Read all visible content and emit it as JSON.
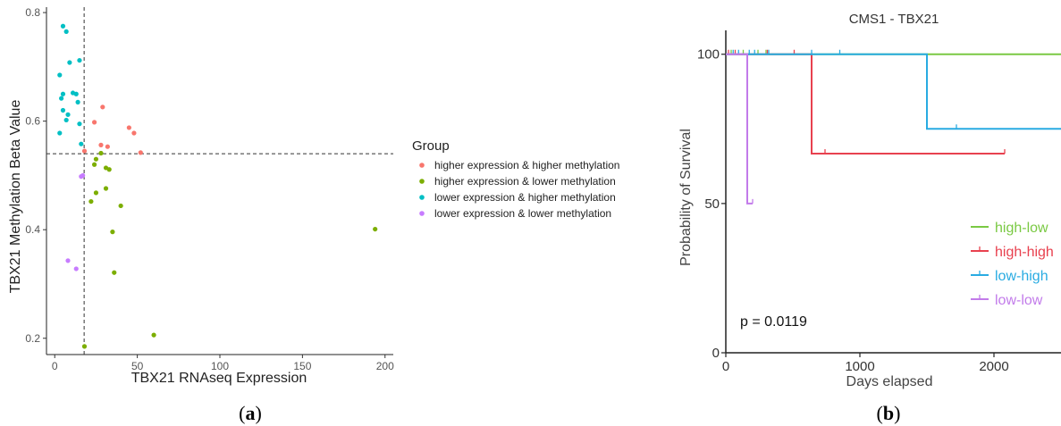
{
  "panel_a": {
    "caption": "(a)",
    "caption_letter": "a",
    "chart_data": {
      "type": "scatter",
      "title": "",
      "xlabel": "TBX21 RNAseq Expression",
      "ylabel": "TBX21 Methylation Beta Value",
      "xlim": [
        -5,
        205
      ],
      "ylim": [
        0.17,
        0.81
      ],
      "xticks": [
        0,
        50,
        100,
        150,
        200
      ],
      "xtick_labels": [
        "0",
        "50",
        "100",
        "150",
        "200"
      ],
      "yticks": [
        0.2,
        0.4,
        0.6,
        0.8
      ],
      "ytick_labels": [
        "0.2",
        "0.4",
        "0.6",
        "0.8"
      ],
      "grid": false,
      "reference_lines": {
        "x": 17.8,
        "y": 0.54,
        "style": "dashed"
      },
      "legend": {
        "title": "Group",
        "position": "right"
      },
      "series": [
        {
          "name": "higher expression & higher methylation",
          "color": "#F8766D",
          "points": [
            [
              18,
              0.545
            ],
            [
              24,
              0.598
            ],
            [
              28,
              0.556
            ],
            [
              29,
              0.626
            ],
            [
              32,
              0.553
            ],
            [
              45,
              0.588
            ],
            [
              48,
              0.578
            ],
            [
              52,
              0.542
            ]
          ]
        },
        {
          "name": "higher expression & lower methylation",
          "color": "#7CAE00",
          "points": [
            [
              18,
              0.185
            ],
            [
              22,
              0.452
            ],
            [
              24,
              0.52
            ],
            [
              25,
              0.53
            ],
            [
              25,
              0.468
            ],
            [
              28,
              0.541
            ],
            [
              31,
              0.476
            ],
            [
              31,
              0.514
            ],
            [
              33,
              0.511
            ],
            [
              35,
              0.396
            ],
            [
              36,
              0.321
            ],
            [
              40,
              0.444
            ],
            [
              60,
              0.206
            ],
            [
              194,
              0.401
            ]
          ]
        },
        {
          "name": "lower expression & higher methylation",
          "color": "#00BFC4",
          "points": [
            [
              3,
              0.685
            ],
            [
              3,
              0.578
            ],
            [
              4,
              0.642
            ],
            [
              5,
              0.775
            ],
            [
              5,
              0.65
            ],
            [
              5,
              0.62
            ],
            [
              7,
              0.765
            ],
            [
              7,
              0.602
            ],
            [
              8,
              0.612
            ],
            [
              9,
              0.708
            ],
            [
              11,
              0.652
            ],
            [
              13,
              0.65
            ],
            [
              14,
              0.635
            ],
            [
              15,
              0.712
            ],
            [
              15,
              0.595
            ],
            [
              16,
              0.558
            ]
          ]
        },
        {
          "name": "lower expression & lower methylation",
          "color": "#C77CFF",
          "points": [
            [
              8,
              0.343
            ],
            [
              13,
              0.328
            ],
            [
              16,
              0.498
            ],
            [
              17,
              0.5
            ]
          ]
        }
      ]
    }
  },
  "panel_b": {
    "caption": "(b)",
    "caption_letter": "b",
    "chart_data": {
      "type": "line",
      "subtype": "kaplan-meier step",
      "title": "CMS1 - TBX21",
      "xlabel": "Days elapsed",
      "ylabel": "Probability of Survival",
      "xlim": [
        0,
        2500
      ],
      "ylim": [
        0,
        108
      ],
      "xticks": [
        0,
        1000,
        2000
      ],
      "xtick_labels": [
        "0",
        "1000",
        "2000"
      ],
      "yticks": [
        0,
        50,
        100
      ],
      "ytick_labels": [
        "0",
        "50",
        "100"
      ],
      "grid": false,
      "annotation": "p = 0.0119",
      "legend": {
        "position": "bottom-right"
      },
      "series": [
        {
          "name": "high-low",
          "color": "#7AC943",
          "steps": [
            [
              0,
              100
            ],
            [
              2500,
              100
            ]
          ],
          "censor_x": [
            40,
            130,
            240,
            300
          ]
        },
        {
          "name": "high-high",
          "color": "#E8414F",
          "steps": [
            [
              0,
              100
            ],
            [
              640,
              100
            ],
            [
              640,
              66.7
            ],
            [
              2080,
              66.7
            ]
          ],
          "censor_x": [
            20,
            70,
            310,
            510,
            740,
            2080
          ]
        },
        {
          "name": "low-high",
          "color": "#29ABE2",
          "steps": [
            [
              0,
              100
            ],
            [
              1500,
              100
            ],
            [
              1500,
              75
            ],
            [
              2500,
              75
            ]
          ],
          "censor_x": [
            55,
            95,
            175,
            215,
            320,
            640,
            850,
            1500,
            1720
          ]
        },
        {
          "name": "low-low",
          "color": "#C27BEA",
          "steps": [
            [
              0,
              100
            ],
            [
              160,
              100
            ],
            [
              160,
              50
            ],
            [
              200,
              50
            ]
          ],
          "censor_x": [
            160,
            200
          ]
        }
      ]
    }
  }
}
